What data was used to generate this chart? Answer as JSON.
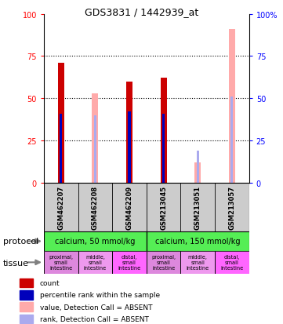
{
  "title": "GDS3831 / 1442939_at",
  "samples": [
    "GSM462207",
    "GSM462208",
    "GSM462209",
    "GSM213045",
    "GSM213051",
    "GSM213057"
  ],
  "count_values": [
    71,
    0,
    60,
    62,
    12,
    0
  ],
  "rank_values": [
    41,
    0,
    42,
    41,
    0,
    0
  ],
  "absent_value_values": [
    0,
    53,
    0,
    0,
    12,
    91
  ],
  "absent_rank_values": [
    0,
    40,
    0,
    0,
    19,
    51
  ],
  "absent_flags": [
    false,
    true,
    false,
    false,
    true,
    true
  ],
  "present_flags": [
    true,
    false,
    true,
    true,
    false,
    false
  ],
  "color_count": "#cc0000",
  "color_rank": "#0000bb",
  "color_absent_value": "#ffaaaa",
  "color_absent_rank": "#aaaaee",
  "ylim": [
    0,
    100
  ],
  "yticks": [
    0,
    25,
    50,
    75,
    100
  ],
  "protocol_labels": [
    "calcium, 50 mmol/kg",
    "calcium, 150 mmol/kg"
  ],
  "protocol_color": "#55ee55",
  "tissue_labels": [
    "proximal,\nsmall\nintestine",
    "middle,\nsmall\nintestine",
    "distal,\nsmall\nintestine",
    "proximal,\nsmall\nintestine",
    "middle,\nsmall\nintestine",
    "distal,\nsmall\nintestine"
  ],
  "tissue_colors": [
    "#dd88dd",
    "#ee99ee",
    "#ff66ff",
    "#dd88dd",
    "#ee99ee",
    "#ff66ff"
  ],
  "bg_color": "#cccccc",
  "legend_items": [
    {
      "label": "count",
      "color": "#cc0000"
    },
    {
      "label": "percentile rank within the sample",
      "color": "#0000bb"
    },
    {
      "label": "value, Detection Call = ABSENT",
      "color": "#ffaaaa"
    },
    {
      "label": "rank, Detection Call = ABSENT",
      "color": "#aaaaee"
    }
  ]
}
